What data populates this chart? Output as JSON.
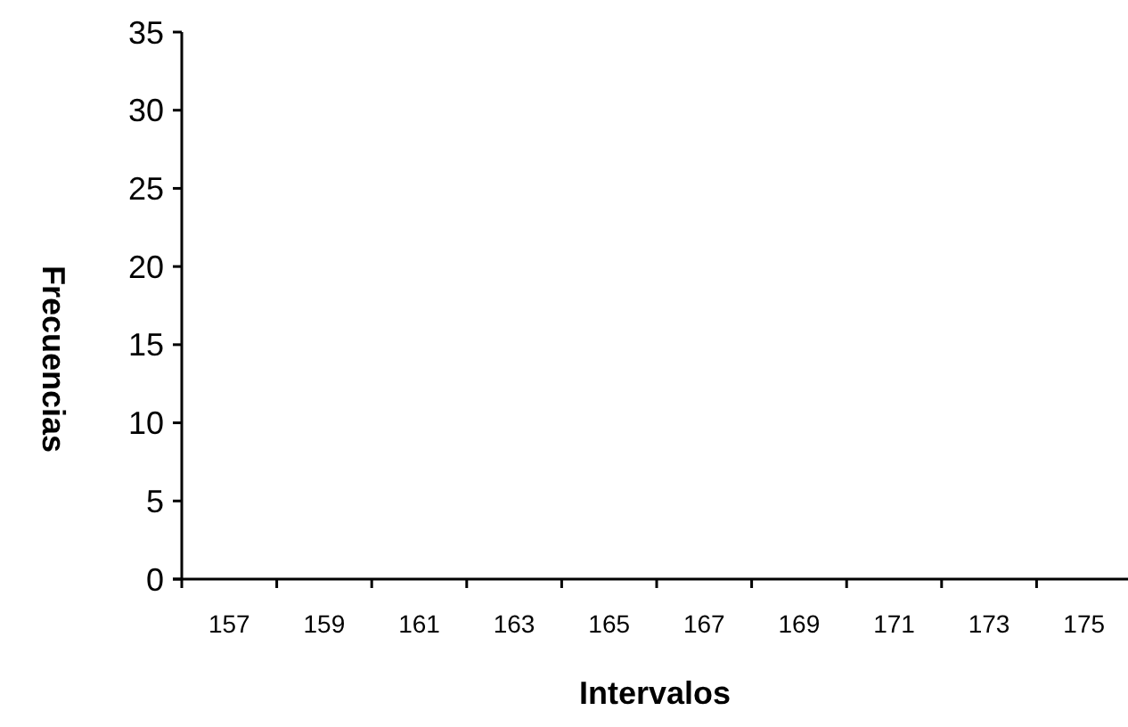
{
  "chart_data": {
    "type": "bar",
    "xlabel": "Intervalos",
    "ylabel": "Frecuencias",
    "categories": [
      "157",
      "159",
      "161",
      "163",
      "165",
      "167",
      "169",
      "171",
      "173",
      "175"
    ],
    "values": [
      0,
      0,
      0,
      0,
      0,
      0,
      0,
      0,
      0,
      0
    ],
    "ylim": [
      0,
      35
    ],
    "yticks": [
      0,
      5,
      10,
      15,
      20,
      25,
      30,
      35
    ]
  }
}
